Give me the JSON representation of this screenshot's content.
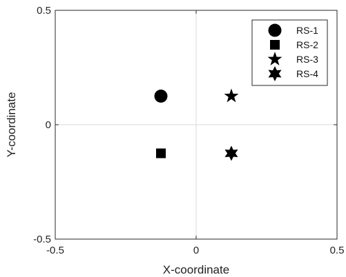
{
  "chart_data": {
    "type": "scatter",
    "title": "",
    "xlabel": "X-coordinate",
    "ylabel": "Y-coordinate",
    "xlim": [
      -0.5,
      0.5
    ],
    "ylim": [
      -0.5,
      0.5
    ],
    "xticks": [
      -0.5,
      0,
      0.5
    ],
    "yticks": [
      -0.5,
      0,
      0.5
    ],
    "xtick_labels": [
      "-0.5",
      "0",
      "0.5"
    ],
    "ytick_labels": [
      "-0.5",
      "0",
      "0.5"
    ],
    "grid": "zero-lines only",
    "legend_position": "top-right",
    "series": [
      {
        "name": "RS-1",
        "marker": "circle",
        "color": "#000000",
        "x": [
          -0.125
        ],
        "y": [
          0.125
        ]
      },
      {
        "name": "RS-2",
        "marker": "square",
        "color": "#000000",
        "x": [
          -0.125
        ],
        "y": [
          -0.125
        ]
      },
      {
        "name": "RS-3",
        "marker": "star5",
        "color": "#000000",
        "x": [
          0.125
        ],
        "y": [
          0.125
        ]
      },
      {
        "name": "RS-4",
        "marker": "star6",
        "color": "#000000",
        "x": [
          0.125
        ],
        "y": [
          -0.125
        ]
      }
    ]
  }
}
